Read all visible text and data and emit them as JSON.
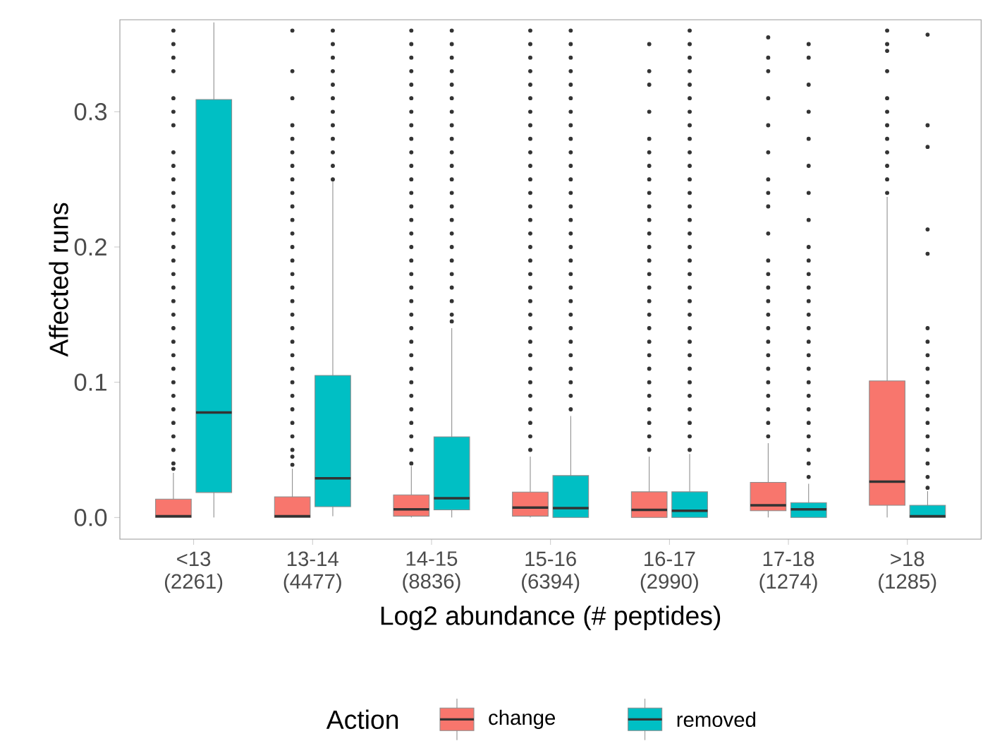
{
  "chart_data": {
    "type": "box",
    "xlabel": "Log2 abundance (# peptides)",
    "ylabel": "Affected runs",
    "legend_title": "Action",
    "legend": "bottom",
    "grid": false,
    "categories": [
      "<13 (2261)",
      "13-14 (4477)",
      "14-15 (8836)",
      "15-16 (6394)",
      "16-17 (2990)",
      "17-18 (1274)",
      ">18 (1285)"
    ],
    "ylim": [
      -0.016,
      0.368
    ],
    "yticks": [
      {
        "value": 0,
        "label": "0.0"
      },
      {
        "value": 0.1,
        "label": "0.1"
      },
      {
        "value": 0.2,
        "label": "0.2"
      },
      {
        "value": 0.3,
        "label": "0.3"
      }
    ],
    "series": [
      {
        "name": "change",
        "color": "#f8766d",
        "boxes": [
          {
            "low": 0,
            "q1": 0,
            "median": 0.001,
            "q3": 0.0136,
            "high": 0.033,
            "outliers": [
              0.036,
              0.04,
              0.05,
              0.06,
              0.07,
              0.08,
              0.09,
              0.1,
              0.11,
              0.12,
              0.13,
              0.14,
              0.15,
              0.16,
              0.17,
              0.18,
              0.19,
              0.2,
              0.21,
              0.22,
              0.23,
              0.24,
              0.25,
              0.26,
              0.27,
              0.29,
              0.3,
              0.31,
              0.33,
              0.34,
              0.35,
              0.36
            ]
          },
          {
            "low": 0,
            "q1": 0,
            "median": 0.001,
            "q3": 0.0153,
            "high": 0.036,
            "outliers": [
              0.039,
              0.045,
              0.05,
              0.06,
              0.07,
              0.08,
              0.09,
              0.1,
              0.11,
              0.12,
              0.13,
              0.14,
              0.15,
              0.16,
              0.17,
              0.18,
              0.19,
              0.2,
              0.21,
              0.22,
              0.23,
              0.24,
              0.25,
              0.26,
              0.27,
              0.28,
              0.29,
              0.31,
              0.33,
              0.36
            ]
          },
          {
            "low": 0,
            "q1": 0.001,
            "median": 0.006,
            "q3": 0.0167,
            "high": 0.038,
            "outliers": [
              0.04,
              0.05,
              0.06,
              0.07,
              0.08,
              0.09,
              0.1,
              0.11,
              0.12,
              0.13,
              0.14,
              0.15,
              0.16,
              0.17,
              0.18,
              0.19,
              0.2,
              0.21,
              0.22,
              0.23,
              0.24,
              0.25,
              0.26,
              0.27,
              0.28,
              0.29,
              0.3,
              0.31,
              0.32,
              0.33,
              0.34,
              0.35,
              0.36
            ]
          },
          {
            "low": 0,
            "q1": 0.001,
            "median": 0.0073,
            "q3": 0.0188,
            "high": 0.045,
            "outliers": [
              0.05,
              0.06,
              0.07,
              0.08,
              0.09,
              0.1,
              0.11,
              0.12,
              0.13,
              0.14,
              0.15,
              0.16,
              0.17,
              0.18,
              0.19,
              0.2,
              0.21,
              0.22,
              0.23,
              0.24,
              0.25,
              0.26,
              0.27,
              0.28,
              0.29,
              0.3,
              0.31,
              0.32,
              0.33,
              0.34,
              0.35,
              0.36
            ]
          },
          {
            "low": 0,
            "q1": 0,
            "median": 0.0056,
            "q3": 0.019,
            "high": 0.045,
            "outliers": [
              0.05,
              0.06,
              0.07,
              0.08,
              0.09,
              0.1,
              0.11,
              0.12,
              0.13,
              0.14,
              0.15,
              0.16,
              0.17,
              0.18,
              0.19,
              0.2,
              0.21,
              0.22,
              0.23,
              0.24,
              0.25,
              0.26,
              0.27,
              0.28,
              0.3,
              0.32,
              0.33,
              0.35
            ]
          },
          {
            "low": 0,
            "q1": 0.005,
            "median": 0.009,
            "q3": 0.026,
            "high": 0.055,
            "outliers": [
              0.06,
              0.07,
              0.08,
              0.09,
              0.1,
              0.11,
              0.12,
              0.13,
              0.14,
              0.15,
              0.16,
              0.17,
              0.18,
              0.19,
              0.21,
              0.23,
              0.24,
              0.25,
              0.27,
              0.29,
              0.31,
              0.33,
              0.34,
              0.355
            ]
          },
          {
            "low": 0,
            "q1": 0.009,
            "median": 0.0265,
            "q3": 0.101,
            "high": 0.237,
            "outliers": [
              0.24,
              0.25,
              0.26,
              0.27,
              0.28,
              0.29,
              0.3,
              0.31,
              0.33,
              0.345,
              0.35,
              0.36
            ]
          }
        ]
      },
      {
        "name": "removed",
        "color": "#00bfc4",
        "boxes": [
          {
            "low": 0,
            "q1": 0.0185,
            "median": 0.0777,
            "q3": 0.309,
            "high": 0.366
          },
          {
            "low": 0.001,
            "q1": 0.008,
            "median": 0.029,
            "q3": 0.105,
            "high": 0.249,
            "outliers": [
              0.25,
              0.26,
              0.27,
              0.28,
              0.29,
              0.3,
              0.31,
              0.32,
              0.33,
              0.34,
              0.35,
              0.36
            ]
          },
          {
            "low": 0,
            "q1": 0.0056,
            "median": 0.0143,
            "q3": 0.0596,
            "high": 0.14,
            "outliers": [
              0.145,
              0.15,
              0.16,
              0.17,
              0.18,
              0.19,
              0.2,
              0.21,
              0.22,
              0.23,
              0.24,
              0.25,
              0.26,
              0.27,
              0.28,
              0.29,
              0.3,
              0.31,
              0.32,
              0.33,
              0.34,
              0.35,
              0.36
            ]
          },
          {
            "low": 0,
            "q1": 0,
            "median": 0.007,
            "q3": 0.031,
            "high": 0.075,
            "outliers": [
              0.08,
              0.09,
              0.1,
              0.11,
              0.12,
              0.13,
              0.14,
              0.15,
              0.16,
              0.17,
              0.18,
              0.19,
              0.2,
              0.21,
              0.22,
              0.23,
              0.24,
              0.25,
              0.26,
              0.27,
              0.28,
              0.29,
              0.3,
              0.31,
              0.32,
              0.33,
              0.34,
              0.35,
              0.36
            ]
          },
          {
            "low": 0,
            "q1": 0,
            "median": 0.005,
            "q3": 0.019,
            "high": 0.047,
            "outliers": [
              0.05,
              0.06,
              0.07,
              0.08,
              0.09,
              0.1,
              0.11,
              0.12,
              0.13,
              0.14,
              0.15,
              0.16,
              0.17,
              0.18,
              0.19,
              0.2,
              0.21,
              0.22,
              0.23,
              0.24,
              0.25,
              0.26,
              0.27,
              0.28,
              0.29,
              0.3,
              0.31,
              0.32,
              0.33,
              0.34,
              0.35,
              0.36
            ]
          },
          {
            "low": 0,
            "q1": 0,
            "median": 0.006,
            "q3": 0.011,
            "high": 0.025,
            "outliers": [
              0.03,
              0.04,
              0.05,
              0.06,
              0.07,
              0.08,
              0.09,
              0.1,
              0.11,
              0.12,
              0.13,
              0.14,
              0.15,
              0.16,
              0.17,
              0.18,
              0.19,
              0.2,
              0.22,
              0.24,
              0.26,
              0.28,
              0.3,
              0.32,
              0.34,
              0.35
            ]
          },
          {
            "low": 0,
            "q1": 0,
            "median": 0.001,
            "q3": 0.009,
            "high": 0.0195,
            "outliers": [
              0.022,
              0.03,
              0.04,
              0.05,
              0.06,
              0.07,
              0.08,
              0.09,
              0.1,
              0.11,
              0.12,
              0.13,
              0.14,
              0.195,
              0.213,
              0.274,
              0.29,
              0.357
            ]
          }
        ]
      }
    ]
  }
}
